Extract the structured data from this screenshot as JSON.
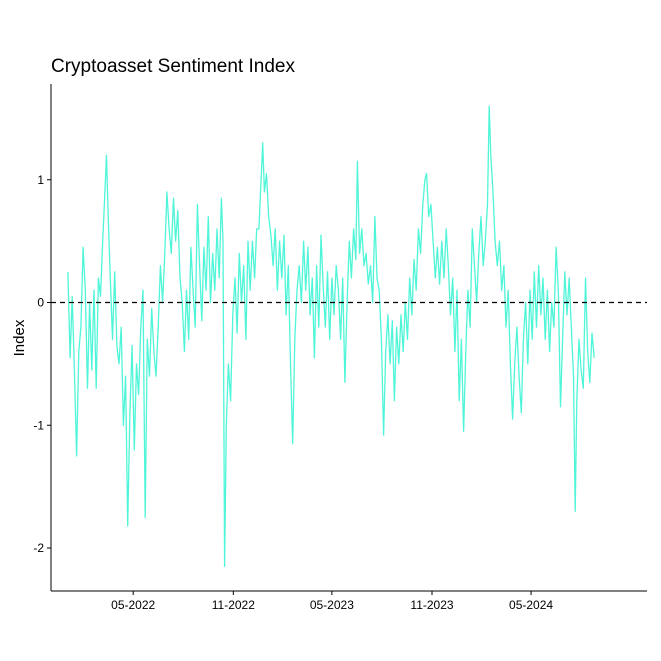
{
  "chart_data": {
    "type": "line",
    "title": "Cryptoasset Sentiment Index",
    "xlabel": "",
    "ylabel": "Index",
    "xlim": [
      "2021-12-01",
      "2024-11-30"
    ],
    "ylim": [
      -2.35,
      1.78
    ],
    "x_ticks": [
      {
        "date": "2022-05-01",
        "label": "05-2022"
      },
      {
        "date": "2022-11-01",
        "label": "11-2022"
      },
      {
        "date": "2023-05-01",
        "label": "05-2023"
      },
      {
        "date": "2023-11-01",
        "label": "11-2023"
      },
      {
        "date": "2024-05-01",
        "label": "05-2024"
      }
    ],
    "y_ticks": [
      {
        "value": 1,
        "label": "1"
      },
      {
        "value": 0,
        "label": "0"
      },
      {
        "value": -1,
        "label": "-1"
      },
      {
        "value": -2,
        "label": "-2"
      }
    ],
    "reference_line": {
      "value": 0,
      "style": "dashed",
      "color": "#000000"
    },
    "grid": false,
    "series": [
      {
        "color": "#4ff5d8",
        "points": [
          [
            "2022-01-01",
            0.25
          ],
          [
            "2022-01-05",
            -0.45
          ],
          [
            "2022-01-09",
            0.05
          ],
          [
            "2022-01-13",
            -0.55
          ],
          [
            "2022-01-17",
            -1.25
          ],
          [
            "2022-01-21",
            -0.4
          ],
          [
            "2022-01-25",
            -0.2
          ],
          [
            "2022-01-29",
            0.45
          ],
          [
            "2022-02-02",
            0.1
          ],
          [
            "2022-02-06",
            -0.7
          ],
          [
            "2022-02-10",
            0.0
          ],
          [
            "2022-02-14",
            -0.55
          ],
          [
            "2022-02-18",
            0.1
          ],
          [
            "2022-02-22",
            -0.7
          ],
          [
            "2022-02-26",
            0.2
          ],
          [
            "2022-03-02",
            0.05
          ],
          [
            "2022-03-06",
            0.5
          ],
          [
            "2022-03-10",
            0.9
          ],
          [
            "2022-03-13",
            1.2
          ],
          [
            "2022-03-16",
            0.7
          ],
          [
            "2022-03-20",
            0.2
          ],
          [
            "2022-03-24",
            -0.3
          ],
          [
            "2022-03-28",
            0.25
          ],
          [
            "2022-04-01",
            -0.35
          ],
          [
            "2022-04-05",
            -0.5
          ],
          [
            "2022-04-09",
            -0.2
          ],
          [
            "2022-04-13",
            -1.0
          ],
          [
            "2022-04-17",
            -0.6
          ],
          [
            "2022-04-21",
            -1.82
          ],
          [
            "2022-04-25",
            -0.9
          ],
          [
            "2022-04-29",
            -0.35
          ],
          [
            "2022-05-03",
            -1.2
          ],
          [
            "2022-05-07",
            -0.5
          ],
          [
            "2022-05-11",
            -0.75
          ],
          [
            "2022-05-15",
            -0.2
          ],
          [
            "2022-05-19",
            0.1
          ],
          [
            "2022-05-23",
            -1.75
          ],
          [
            "2022-05-27",
            -0.3
          ],
          [
            "2022-05-31",
            -0.6
          ],
          [
            "2022-06-04",
            -0.05
          ],
          [
            "2022-06-08",
            -0.4
          ],
          [
            "2022-06-12",
            -0.6
          ],
          [
            "2022-06-16",
            -0.2
          ],
          [
            "2022-06-20",
            0.3
          ],
          [
            "2022-06-24",
            0.0
          ],
          [
            "2022-06-28",
            0.4
          ],
          [
            "2022-07-02",
            0.9
          ],
          [
            "2022-07-06",
            0.6
          ],
          [
            "2022-07-10",
            0.4
          ],
          [
            "2022-07-14",
            0.85
          ],
          [
            "2022-07-18",
            0.5
          ],
          [
            "2022-07-22",
            0.75
          ],
          [
            "2022-07-26",
            0.2
          ],
          [
            "2022-07-30",
            0.0
          ],
          [
            "2022-08-03",
            -0.4
          ],
          [
            "2022-08-07",
            0.1
          ],
          [
            "2022-08-11",
            -0.3
          ],
          [
            "2022-08-15",
            0.45
          ],
          [
            "2022-08-19",
            0.1
          ],
          [
            "2022-08-23",
            -0.2
          ],
          [
            "2022-08-27",
            0.8
          ],
          [
            "2022-08-31",
            0.3
          ],
          [
            "2022-09-04",
            -0.15
          ],
          [
            "2022-09-08",
            0.45
          ],
          [
            "2022-09-12",
            0.1
          ],
          [
            "2022-09-16",
            0.7
          ],
          [
            "2022-09-20",
            0.0
          ],
          [
            "2022-09-24",
            0.4
          ],
          [
            "2022-09-28",
            0.1
          ],
          [
            "2022-10-02",
            0.6
          ],
          [
            "2022-10-06",
            0.2
          ],
          [
            "2022-10-10",
            0.85
          ],
          [
            "2022-10-13",
            0.5
          ],
          [
            "2022-10-16",
            -2.15
          ],
          [
            "2022-10-19",
            -1.0
          ],
          [
            "2022-10-23",
            -0.5
          ],
          [
            "2022-10-27",
            -0.8
          ],
          [
            "2022-10-31",
            -0.1
          ],
          [
            "2022-11-04",
            0.2
          ],
          [
            "2022-11-08",
            -0.25
          ],
          [
            "2022-11-12",
            0.4
          ],
          [
            "2022-11-16",
            0.0
          ],
          [
            "2022-11-20",
            0.3
          ],
          [
            "2022-11-24",
            -0.3
          ],
          [
            "2022-11-28",
            0.5
          ],
          [
            "2022-12-02",
            0.1
          ],
          [
            "2022-12-06",
            0.5
          ],
          [
            "2022-12-10",
            0.2
          ],
          [
            "2022-12-14",
            0.6
          ],
          [
            "2022-12-18",
            0.6
          ],
          [
            "2022-12-22",
            1.0
          ],
          [
            "2022-12-25",
            1.3
          ],
          [
            "2022-12-28",
            0.9
          ],
          [
            "2023-01-01",
            1.05
          ],
          [
            "2023-01-05",
            0.7
          ],
          [
            "2023-01-09",
            0.55
          ],
          [
            "2023-01-13",
            0.3
          ],
          [
            "2023-01-17",
            0.6
          ],
          [
            "2023-01-21",
            0.1
          ],
          [
            "2023-01-25",
            0.5
          ],
          [
            "2023-01-29",
            0.2
          ],
          [
            "2023-02-02",
            0.55
          ],
          [
            "2023-02-06",
            -0.1
          ],
          [
            "2023-02-10",
            0.3
          ],
          [
            "2023-02-14",
            -0.5
          ],
          [
            "2023-02-18",
            -1.15
          ],
          [
            "2023-02-22",
            -0.3
          ],
          [
            "2023-02-26",
            0.1
          ],
          [
            "2023-03-02",
            0.3
          ],
          [
            "2023-03-06",
            0.0
          ],
          [
            "2023-03-10",
            0.5
          ],
          [
            "2023-03-14",
            0.1
          ],
          [
            "2023-03-18",
            0.45
          ],
          [
            "2023-03-22",
            -0.1
          ],
          [
            "2023-03-26",
            0.2
          ],
          [
            "2023-03-30",
            -0.45
          ],
          [
            "2023-04-03",
            0.3
          ],
          [
            "2023-04-07",
            -0.2
          ],
          [
            "2023-04-11",
            0.55
          ],
          [
            "2023-04-15",
            0.15
          ],
          [
            "2023-04-19",
            -0.2
          ],
          [
            "2023-04-23",
            0.25
          ],
          [
            "2023-04-27",
            -0.3
          ],
          [
            "2023-05-01",
            0.2
          ],
          [
            "2023-05-05",
            -0.1
          ],
          [
            "2023-05-09",
            0.3
          ],
          [
            "2023-05-13",
            0.1
          ],
          [
            "2023-05-17",
            -0.3
          ],
          [
            "2023-05-21",
            0.2
          ],
          [
            "2023-05-25",
            -0.65
          ],
          [
            "2023-05-29",
            0.0
          ],
          [
            "2023-06-02",
            0.5
          ],
          [
            "2023-06-06",
            0.2
          ],
          [
            "2023-06-10",
            0.6
          ],
          [
            "2023-06-14",
            0.35
          ],
          [
            "2023-06-17",
            1.15
          ],
          [
            "2023-06-21",
            0.4
          ],
          [
            "2023-06-25",
            0.6
          ],
          [
            "2023-06-29",
            0.3
          ],
          [
            "2023-07-03",
            0.4
          ],
          [
            "2023-07-07",
            0.15
          ],
          [
            "2023-07-11",
            0.3
          ],
          [
            "2023-07-15",
            0.0
          ],
          [
            "2023-07-19",
            0.7
          ],
          [
            "2023-07-23",
            0.2
          ],
          [
            "2023-07-27",
            0.1
          ],
          [
            "2023-07-31",
            -0.3
          ],
          [
            "2023-08-04",
            -1.08
          ],
          [
            "2023-08-08",
            -0.4
          ],
          [
            "2023-08-12",
            -0.1
          ],
          [
            "2023-08-16",
            -0.5
          ],
          [
            "2023-08-20",
            -0.15
          ],
          [
            "2023-08-24",
            -0.8
          ],
          [
            "2023-08-28",
            -0.2
          ],
          [
            "2023-09-01",
            -0.5
          ],
          [
            "2023-09-05",
            -0.1
          ],
          [
            "2023-09-09",
            -0.4
          ],
          [
            "2023-09-13",
            0.0
          ],
          [
            "2023-09-17",
            -0.3
          ],
          [
            "2023-09-21",
            0.2
          ],
          [
            "2023-09-25",
            -0.1
          ],
          [
            "2023-09-29",
            0.35
          ],
          [
            "2023-10-03",
            0.1
          ],
          [
            "2023-10-07",
            0.6
          ],
          [
            "2023-10-11",
            0.4
          ],
          [
            "2023-10-15",
            0.8
          ],
          [
            "2023-10-19",
            1.0
          ],
          [
            "2023-10-22",
            1.05
          ],
          [
            "2023-10-26",
            0.7
          ],
          [
            "2023-10-30",
            0.8
          ],
          [
            "2023-11-03",
            0.5
          ],
          [
            "2023-11-07",
            0.2
          ],
          [
            "2023-11-11",
            0.45
          ],
          [
            "2023-11-15",
            0.15
          ],
          [
            "2023-11-19",
            0.5
          ],
          [
            "2023-11-23",
            0.2
          ],
          [
            "2023-11-27",
            0.6
          ],
          [
            "2023-12-01",
            0.3
          ],
          [
            "2023-12-05",
            -0.1
          ],
          [
            "2023-12-09",
            0.2
          ],
          [
            "2023-12-13",
            -0.4
          ],
          [
            "2023-12-17",
            0.1
          ],
          [
            "2023-12-21",
            -0.8
          ],
          [
            "2023-12-25",
            -0.3
          ],
          [
            "2023-12-29",
            -1.05
          ],
          [
            "2024-01-02",
            -0.4
          ],
          [
            "2024-01-06",
            0.1
          ],
          [
            "2024-01-10",
            -0.2
          ],
          [
            "2024-01-14",
            0.6
          ],
          [
            "2024-01-18",
            0.3
          ],
          [
            "2024-01-22",
            0.0
          ],
          [
            "2024-01-26",
            0.4
          ],
          [
            "2024-01-30",
            0.7
          ],
          [
            "2024-02-03",
            0.3
          ],
          [
            "2024-02-07",
            0.5
          ],
          [
            "2024-02-11",
            0.8
          ],
          [
            "2024-02-14",
            1.6
          ],
          [
            "2024-02-17",
            1.2
          ],
          [
            "2024-02-21",
            0.9
          ],
          [
            "2024-02-25",
            0.5
          ],
          [
            "2024-02-29",
            0.3
          ],
          [
            "2024-03-04",
            0.5
          ],
          [
            "2024-03-08",
            0.1
          ],
          [
            "2024-03-12",
            0.3
          ],
          [
            "2024-03-16",
            -0.2
          ],
          [
            "2024-03-20",
            0.1
          ],
          [
            "2024-03-24",
            -0.5
          ],
          [
            "2024-03-28",
            -0.95
          ],
          [
            "2024-04-01",
            -0.5
          ],
          [
            "2024-04-05",
            -0.2
          ],
          [
            "2024-04-09",
            -0.6
          ],
          [
            "2024-04-13",
            -0.9
          ],
          [
            "2024-04-17",
            -0.3
          ],
          [
            "2024-04-21",
            0.0
          ],
          [
            "2024-04-25",
            -0.5
          ],
          [
            "2024-04-29",
            0.1
          ],
          [
            "2024-05-03",
            -0.3
          ],
          [
            "2024-05-07",
            0.25
          ],
          [
            "2024-05-11",
            -0.2
          ],
          [
            "2024-05-15",
            0.3
          ],
          [
            "2024-05-19",
            -0.1
          ],
          [
            "2024-05-23",
            0.2
          ],
          [
            "2024-05-27",
            -0.3
          ],
          [
            "2024-05-31",
            0.1
          ],
          [
            "2024-06-04",
            -0.4
          ],
          [
            "2024-06-08",
            0.0
          ],
          [
            "2024-06-12",
            -0.2
          ],
          [
            "2024-06-16",
            0.45
          ],
          [
            "2024-06-20",
            0.1
          ],
          [
            "2024-06-24",
            -0.85
          ],
          [
            "2024-06-28",
            -0.3
          ],
          [
            "2024-07-02",
            0.25
          ],
          [
            "2024-07-06",
            -0.1
          ],
          [
            "2024-07-10",
            0.2
          ],
          [
            "2024-07-14",
            -0.2
          ],
          [
            "2024-07-18",
            -0.6
          ],
          [
            "2024-07-21",
            -1.7
          ],
          [
            "2024-07-24",
            -0.8
          ],
          [
            "2024-07-28",
            -0.3
          ],
          [
            "2024-08-01",
            -0.55
          ],
          [
            "2024-08-05",
            -0.7
          ],
          [
            "2024-08-09",
            0.2
          ],
          [
            "2024-08-13",
            -0.4
          ],
          [
            "2024-08-17",
            -0.65
          ],
          [
            "2024-08-21",
            -0.25
          ],
          [
            "2024-08-25",
            -0.45
          ]
        ]
      }
    ]
  }
}
